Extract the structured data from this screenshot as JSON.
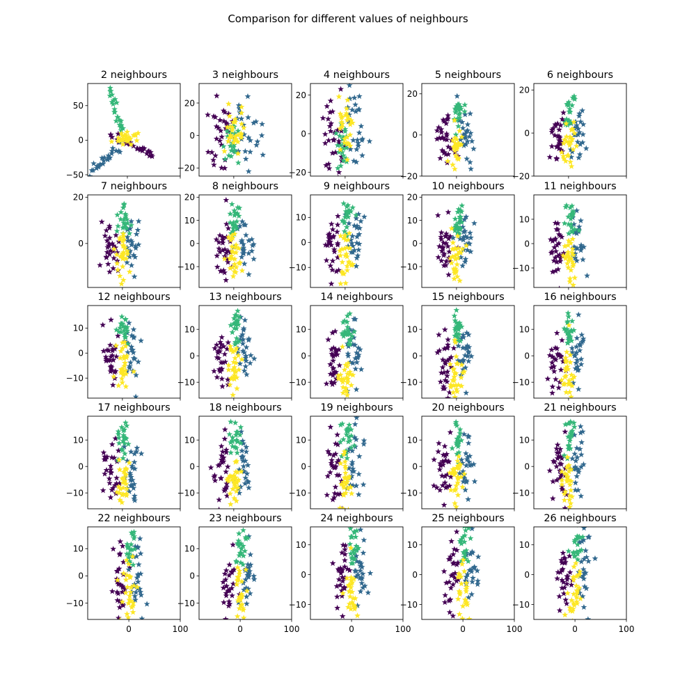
{
  "figure": {
    "title": "Comparison for different values of neighbours"
  },
  "colors": {
    "cluster_a": "#440154",
    "cluster_b": "#31688e",
    "cluster_c": "#35b779",
    "cluster_d": "#fde725"
  },
  "marker": "star",
  "chart_data": [
    {
      "type": "scatter",
      "title": "2 neighbours",
      "xlim": [
        -75,
        100
      ],
      "ylim": [
        -52,
        82
      ],
      "xticks": [
        0,
        100
      ],
      "yticks": [
        -50,
        0,
        50
      ],
      "ytick_labels": [
        "−50",
        "0",
        "50"
      ],
      "xtick_labels": [
        "",
        ""
      ],
      "shape": {
        "kind": "arms"
      }
    },
    {
      "type": "scatter",
      "title": "3 neighbours",
      "xlim": [
        -60,
        100
      ],
      "ylim": [
        -25,
        32
      ],
      "xticks": [
        0,
        100
      ],
      "yticks": [
        -20,
        0,
        20
      ],
      "ytick_labels": [
        "−20",
        "0",
        "20"
      ],
      "xtick_labels": [
        "",
        ""
      ],
      "shape": {
        "kind": "blob",
        "spread": 1.3
      }
    },
    {
      "type": "scatter",
      "title": "4 neighbours",
      "xlim": [
        -60,
        100
      ],
      "ylim": [
        -22,
        26
      ],
      "xticks": [
        0,
        100
      ],
      "yticks": [
        -20,
        0,
        20
      ],
      "ytick_labels": [
        "−20",
        "0",
        "20"
      ],
      "xtick_labels": [
        "",
        ""
      ],
      "shape": {
        "kind": "blob",
        "spread": 1.15
      }
    },
    {
      "type": "scatter",
      "title": "5 neighbours",
      "xlim": [
        -60,
        100
      ],
      "ylim": [
        -20,
        25
      ],
      "xticks": [
        0,
        100
      ],
      "yticks": [
        -20,
        0,
        20
      ],
      "ytick_labels": [
        "−20",
        "0",
        "20"
      ],
      "xtick_labels": [
        "",
        ""
      ],
      "shape": {
        "kind": "column"
      }
    },
    {
      "type": "scatter",
      "title": "6 neighbours",
      "xlim": [
        -60,
        100
      ],
      "ylim": [
        -20,
        23
      ],
      "xticks": [
        0,
        100
      ],
      "yticks": [
        -20,
        0,
        20
      ],
      "ytick_labels": [
        "−20",
        "0",
        "20"
      ],
      "xtick_labels": [
        "",
        ""
      ],
      "shape": {
        "kind": "column"
      }
    },
    {
      "type": "scatter",
      "title": "7 neighbours",
      "xlim": [
        -60,
        100
      ],
      "ylim": [
        -19,
        21
      ],
      "xticks": [
        0,
        100
      ],
      "yticks": [
        0,
        20
      ],
      "ytick_labels": [
        "0",
        "20"
      ],
      "xtick_labels": [
        "",
        ""
      ],
      "shape": {
        "kind": "column"
      }
    },
    {
      "type": "scatter",
      "title": "8 neighbours",
      "xlim": [
        -60,
        100
      ],
      "ylim": [
        -19,
        21
      ],
      "xticks": [
        0,
        100
      ],
      "yticks": [
        -10,
        0,
        10,
        20
      ],
      "ytick_labels": [
        "−10",
        "0",
        "10",
        "20"
      ],
      "xtick_labels": [
        "",
        ""
      ],
      "shape": {
        "kind": "column"
      }
    },
    {
      "type": "scatter",
      "title": "9 neighbours",
      "xlim": [
        -60,
        100
      ],
      "ylim": [
        -18,
        19
      ],
      "xticks": [
        0,
        100
      ],
      "yticks": [
        -10,
        0,
        10
      ],
      "ytick_labels": [
        "−10",
        "0",
        "10"
      ],
      "xtick_labels": [
        "",
        ""
      ],
      "shape": {
        "kind": "column"
      }
    },
    {
      "type": "scatter",
      "title": "10 neighbours",
      "xlim": [
        -60,
        100
      ],
      "ylim": [
        -19,
        21
      ],
      "xticks": [
        0,
        100
      ],
      "yticks": [
        -10,
        0,
        10,
        20
      ],
      "ytick_labels": [
        "−10",
        "0",
        "10",
        "20"
      ],
      "xtick_labels": [
        "",
        ""
      ],
      "shape": {
        "kind": "column"
      }
    },
    {
      "type": "scatter",
      "title": "11 neighbours",
      "xlim": [
        -60,
        100
      ],
      "ylim": [
        -18,
        20
      ],
      "xticks": [
        0,
        100
      ],
      "yticks": [
        -10,
        0,
        10
      ],
      "ytick_labels": [
        "−10",
        "0",
        "10"
      ],
      "xtick_labels": [
        "",
        ""
      ],
      "shape": {
        "kind": "column"
      }
    },
    {
      "type": "scatter",
      "title": "12 neighbours",
      "xlim": [
        -60,
        100
      ],
      "ylim": [
        -18,
        19
      ],
      "xticks": [
        0,
        100
      ],
      "yticks": [
        -10,
        0,
        10
      ],
      "ytick_labels": [
        "−10",
        "0",
        "10"
      ],
      "xtick_labels": [
        "",
        ""
      ],
      "shape": {
        "kind": "column"
      }
    },
    {
      "type": "scatter",
      "title": "13 neighbours",
      "xlim": [
        -60,
        100
      ],
      "ylim": [
        -16,
        19
      ],
      "xticks": [
        0,
        100
      ],
      "yticks": [
        -10,
        0,
        10
      ],
      "ytick_labels": [
        "−10",
        "0",
        "10"
      ],
      "xtick_labels": [
        "",
        ""
      ],
      "shape": {
        "kind": "column"
      }
    },
    {
      "type": "scatter",
      "title": "14 neighbours",
      "xlim": [
        -60,
        100
      ],
      "ylim": [
        -16,
        19
      ],
      "xticks": [
        0,
        100
      ],
      "yticks": [
        -10,
        0,
        10
      ],
      "ytick_labels": [
        "−10",
        "0",
        "10"
      ],
      "xtick_labels": [
        "",
        ""
      ],
      "shape": {
        "kind": "column"
      }
    },
    {
      "type": "scatter",
      "title": "15 neighbours",
      "xlim": [
        -60,
        100
      ],
      "ylim": [
        -16,
        19
      ],
      "xticks": [
        0,
        100
      ],
      "yticks": [
        -10,
        0,
        10
      ],
      "ytick_labels": [
        "−10",
        "0",
        "10"
      ],
      "xtick_labels": [
        "",
        ""
      ],
      "shape": {
        "kind": "column"
      }
    },
    {
      "type": "scatter",
      "title": "16 neighbours",
      "xlim": [
        -60,
        100
      ],
      "ylim": [
        -16,
        19
      ],
      "xticks": [
        0,
        100
      ],
      "yticks": [
        -10,
        0,
        10
      ],
      "ytick_labels": [
        "−10",
        "0",
        "10"
      ],
      "xtick_labels": [
        "",
        ""
      ],
      "shape": {
        "kind": "column"
      }
    },
    {
      "type": "scatter",
      "title": "17 neighbours",
      "xlim": [
        -60,
        100
      ],
      "ylim": [
        -16,
        19
      ],
      "xticks": [
        0,
        100
      ],
      "yticks": [
        -10,
        0,
        10
      ],
      "ytick_labels": [
        "−10",
        "0",
        "10"
      ],
      "xtick_labels": [
        "",
        ""
      ],
      "shape": {
        "kind": "column"
      }
    },
    {
      "type": "scatter",
      "title": "18 neighbours",
      "xlim": [
        -60,
        100
      ],
      "ylim": [
        -16,
        19
      ],
      "xticks": [
        0,
        100
      ],
      "yticks": [
        -10,
        0,
        10
      ],
      "ytick_labels": [
        "−10",
        "0",
        "10"
      ],
      "xtick_labels": [
        "",
        ""
      ],
      "shape": {
        "kind": "column"
      }
    },
    {
      "type": "scatter",
      "title": "19 neighbours",
      "xlim": [
        -60,
        100
      ],
      "ylim": [
        -16,
        19
      ],
      "xticks": [
        0,
        100
      ],
      "yticks": [
        -10,
        0,
        10
      ],
      "ytick_labels": [
        "−10",
        "0",
        "10"
      ],
      "xtick_labels": [
        "",
        ""
      ],
      "shape": {
        "kind": "column"
      }
    },
    {
      "type": "scatter",
      "title": "20 neighbours",
      "xlim": [
        -60,
        100
      ],
      "ylim": [
        -16,
        19
      ],
      "xticks": [
        0,
        100
      ],
      "yticks": [
        -10,
        0,
        10
      ],
      "ytick_labels": [
        "−10",
        "0",
        "10"
      ],
      "xtick_labels": [
        "",
        ""
      ],
      "shape": {
        "kind": "column"
      }
    },
    {
      "type": "scatter",
      "title": "21 neighbours",
      "xlim": [
        -60,
        100
      ],
      "ylim": [
        -16,
        19
      ],
      "xticks": [
        0,
        100
      ],
      "yticks": [
        -10,
        0,
        10
      ],
      "ytick_labels": [
        "−10",
        "0",
        "10"
      ],
      "xtick_labels": [
        "",
        ""
      ],
      "shape": {
        "kind": "column"
      }
    },
    {
      "type": "scatter",
      "title": "22 neighbours",
      "xlim": [
        -80,
        100
      ],
      "ylim": [
        -16,
        18
      ],
      "xticks": [
        0,
        100
      ],
      "yticks": [
        -10,
        0,
        10
      ],
      "ytick_labels": [
        "−10",
        "0",
        "10"
      ],
      "xtick_labels": [
        "0",
        "100"
      ],
      "shape": {
        "kind": "column"
      }
    },
    {
      "type": "scatter",
      "title": "23 neighbours",
      "xlim": [
        -80,
        100
      ],
      "ylim": [
        -16,
        18
      ],
      "xticks": [
        0,
        100
      ],
      "yticks": [
        -10,
        0,
        10
      ],
      "ytick_labels": [
        "−10",
        "0",
        "10"
      ],
      "xtick_labels": [
        "0",
        "100"
      ],
      "shape": {
        "kind": "column"
      }
    },
    {
      "type": "scatter",
      "title": "24 neighbours",
      "xlim": [
        -80,
        100
      ],
      "ylim": [
        -15,
        16
      ],
      "xticks": [
        0,
        100
      ],
      "yticks": [
        -10,
        0,
        10
      ],
      "ytick_labels": [
        "−10",
        "0",
        "10"
      ],
      "xtick_labels": [
        "0",
        "100"
      ],
      "shape": {
        "kind": "column"
      }
    },
    {
      "type": "scatter",
      "title": "25 neighbours",
      "xlim": [
        -80,
        100
      ],
      "ylim": [
        -15,
        16
      ],
      "xticks": [
        0,
        100
      ],
      "yticks": [
        -10,
        0,
        10
      ],
      "ytick_labels": [
        "−10",
        "0",
        "10"
      ],
      "xtick_labels": [
        "0",
        "100"
      ],
      "shape": {
        "kind": "column"
      }
    },
    {
      "type": "scatter",
      "title": "26 neighbours",
      "xlim": [
        -80,
        100
      ],
      "ylim": [
        -15,
        16
      ],
      "xticks": [
        0,
        100
      ],
      "yticks": [
        -10,
        0,
        10
      ],
      "ytick_labels": [
        "−10",
        "0",
        "10"
      ],
      "xtick_labels": [
        "0",
        "100"
      ],
      "shape": {
        "kind": "column"
      }
    }
  ]
}
